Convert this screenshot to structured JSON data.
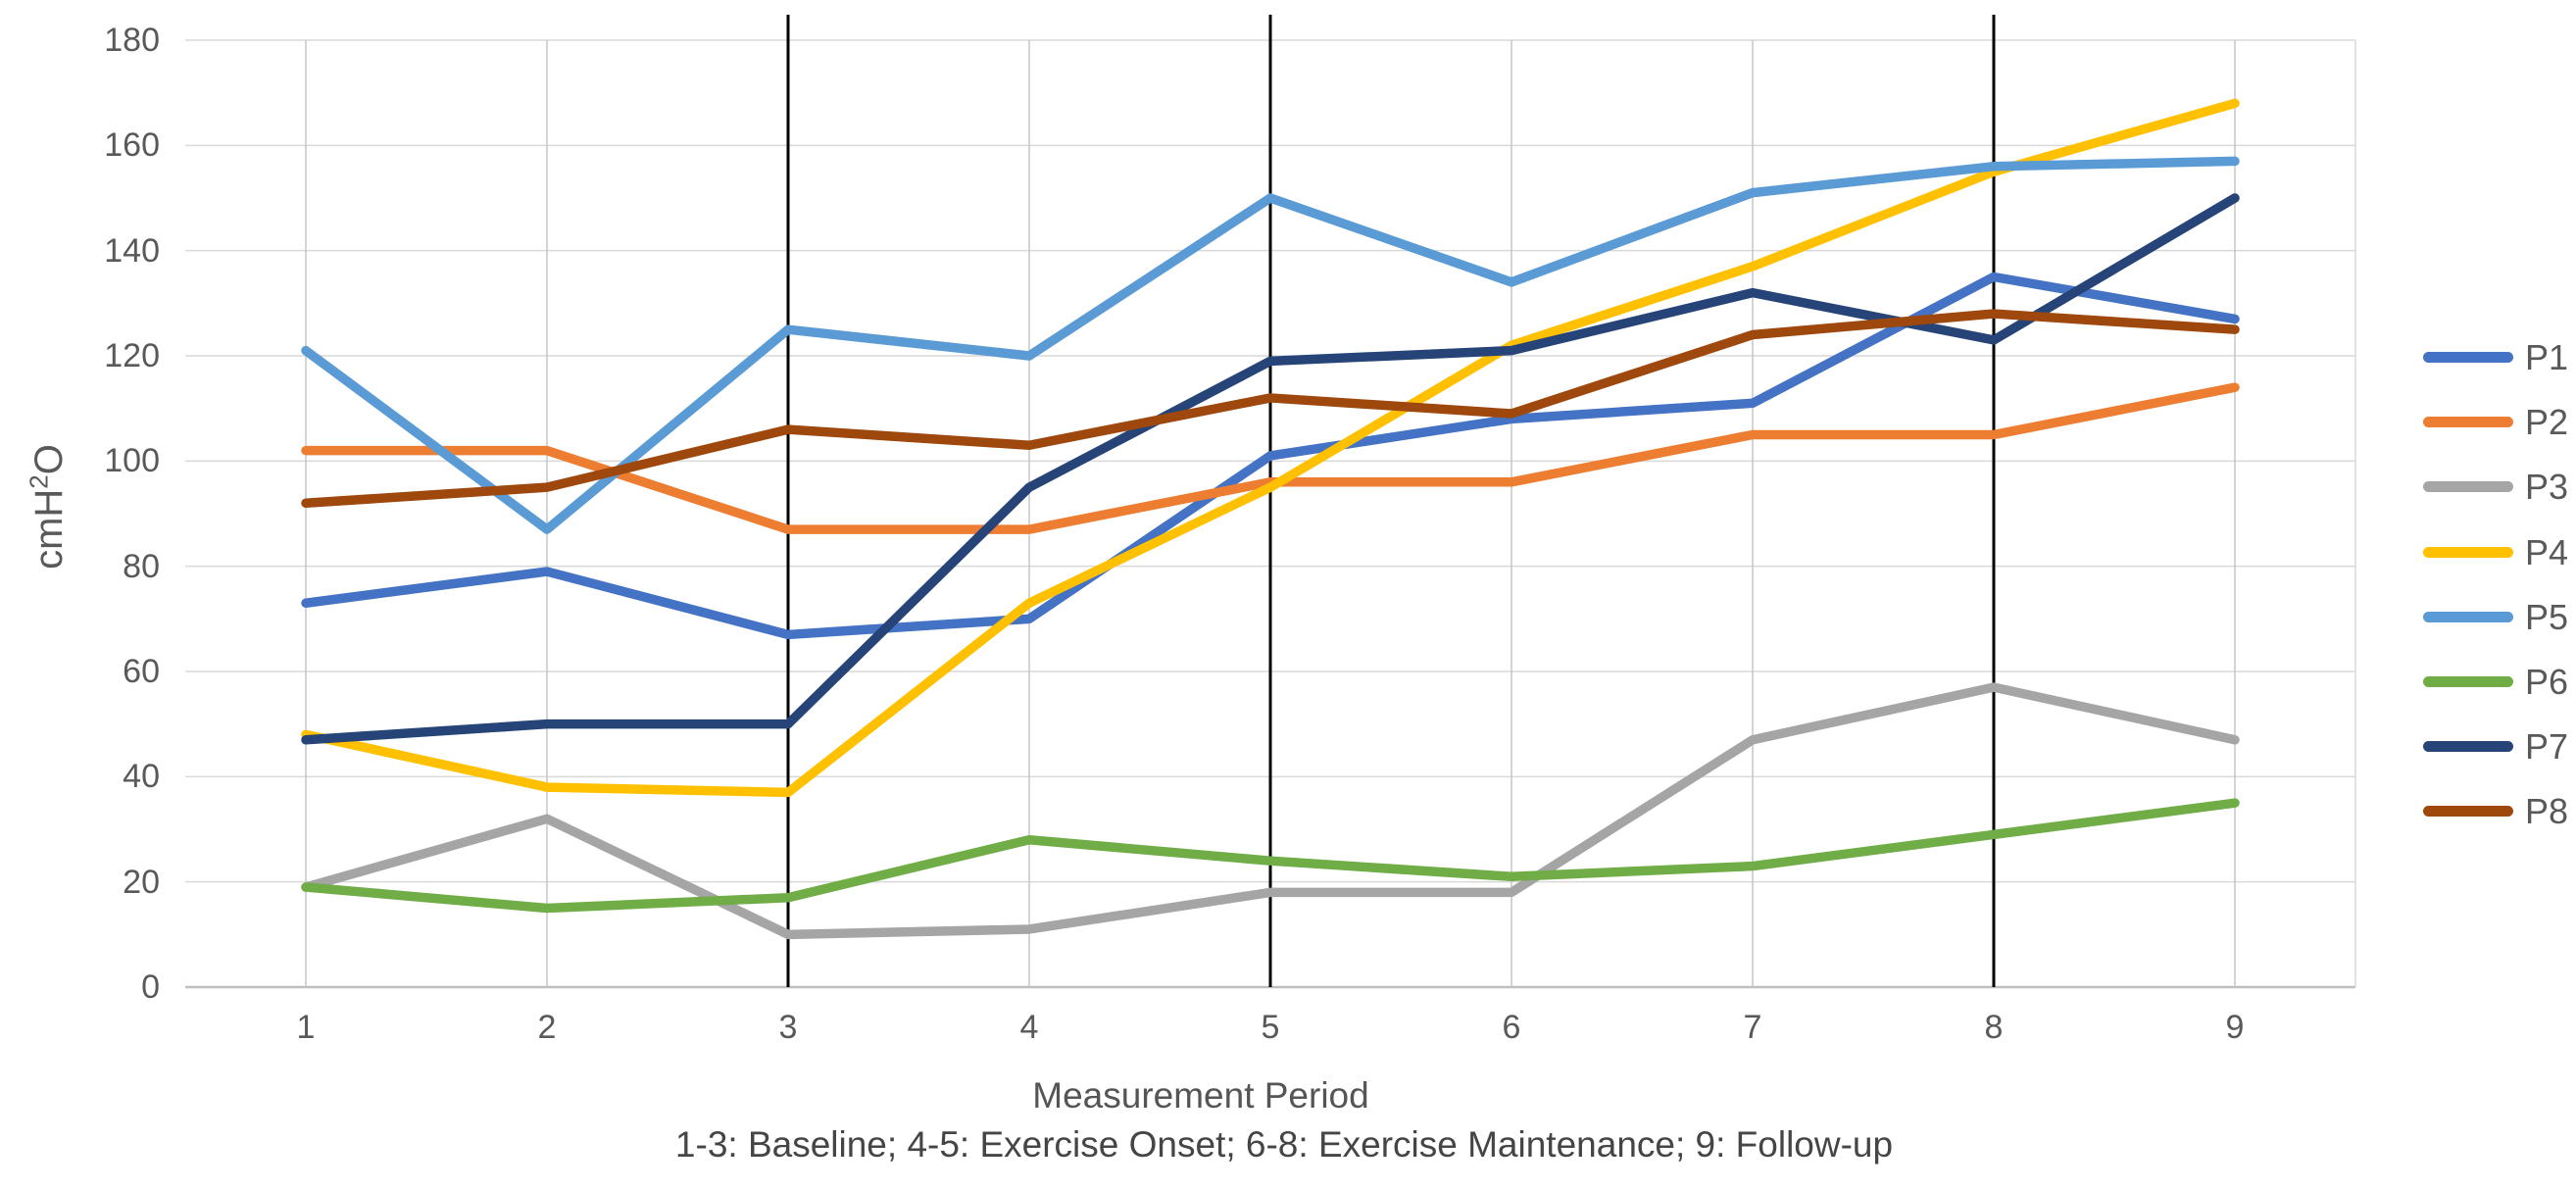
{
  "chart_data": {
    "type": "line",
    "categories": [
      "1",
      "2",
      "3",
      "4",
      "5",
      "6",
      "7",
      "8",
      "9"
    ],
    "series": [
      {
        "name": "P1",
        "color": "#4472C4",
        "values": [
          73,
          79,
          67,
          70,
          101,
          108,
          111,
          135,
          127
        ]
      },
      {
        "name": "P2",
        "color": "#ED7D31",
        "values": [
          102,
          102,
          87,
          87,
          96,
          96,
          105,
          105,
          114
        ]
      },
      {
        "name": "P3",
        "color": "#A5A5A5",
        "values": [
          19,
          32,
          10,
          11,
          18,
          18,
          47,
          57,
          47
        ]
      },
      {
        "name": "P4",
        "color": "#FFC000",
        "values": [
          48,
          38,
          37,
          73,
          95,
          122,
          137,
          155,
          168
        ]
      },
      {
        "name": "P5",
        "color": "#5B9BD5",
        "values": [
          121,
          87,
          125,
          120,
          150,
          134,
          151,
          156,
          157
        ]
      },
      {
        "name": "P6",
        "color": "#70AD47",
        "values": [
          19,
          15,
          17,
          28,
          24,
          21,
          23,
          29,
          35
        ]
      },
      {
        "name": "P7",
        "color": "#264478",
        "values": [
          47,
          50,
          50,
          95,
          119,
          121,
          132,
          123,
          150
        ]
      },
      {
        "name": "P8",
        "color": "#9E480E",
        "values": [
          92,
          95,
          106,
          103,
          112,
          109,
          124,
          128,
          125
        ]
      }
    ],
    "ylim": [
      0,
      180
    ],
    "ytick_step": 20,
    "ytick_labels": [
      "0",
      "20",
      "40",
      "60",
      "80",
      "100",
      "120",
      "140",
      "160",
      "180"
    ],
    "ylabel": {
      "prefix": "cmH",
      "sup": "2",
      "suffix": "O"
    },
    "xlabel": "Measurement Period",
    "subtitle": "1-3: Baseline; 4-5: Exercise Onset; 6-8: Exercise Maintenance; 9: Follow-up",
    "phase_lines_at_x": [
      "3",
      "5",
      "8"
    ],
    "legend_position": "right",
    "grid": {
      "horizontal": true,
      "vertical": true
    },
    "style": {
      "grid_color": "#D9D9D9",
      "vertical_grid_color": "#C6C6C6",
      "axis_line_color": "#BFBFBF",
      "phase_line_color": "#000000",
      "tick_text_color": "#595959"
    }
  }
}
